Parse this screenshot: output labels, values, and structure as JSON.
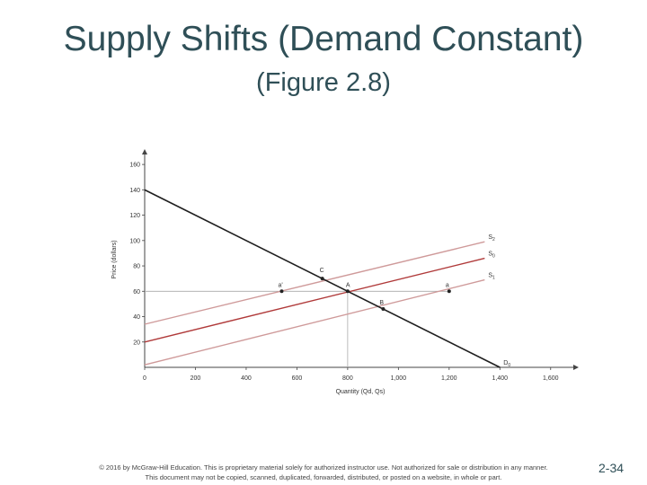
{
  "slide": {
    "title": "Supply Shifts (Demand Constant)",
    "subtitle": "(Figure 2.8)",
    "footer_line1": "© 2016 by McGraw-Hill Education. This is proprietary material solely for authorized instructor use. Not authorized for sale or distribution in any manner.",
    "footer_line2": "This document may not be copied, scanned, duplicated, forwarded, distributed, or posted on a website, in whole or part.",
    "page_number": "2-34"
  },
  "chart_data": {
    "type": "line",
    "xlabel": "Quantity (Qd, Qs)",
    "ylabel": "Price (dollars)",
    "xlim": [
      0,
      1700
    ],
    "ylim": [
      0,
      170
    ],
    "x_ticks": [
      0,
      200,
      400,
      600,
      800,
      1000,
      1200,
      1400,
      1600
    ],
    "x_tick_labels": [
      "0",
      "200",
      "400",
      "600",
      "800",
      "1,000",
      "1,200",
      "1,400",
      "1,600"
    ],
    "y_ticks": [
      20,
      40,
      60,
      80,
      100,
      120,
      140,
      160
    ],
    "grid": false,
    "colors": {
      "demand": "#1e1e1e",
      "s0": "#b03a3a",
      "shifted": "#cf9a9a",
      "guide": "#aaaaaa",
      "axis": "#444444"
    },
    "series": [
      {
        "name": "S2",
        "color": "#cf9a9a",
        "points": [
          [
            0,
            34
          ],
          [
            1340,
            99
          ]
        ]
      },
      {
        "name": "S0",
        "color": "#b03a3a",
        "points": [
          [
            0,
            20
          ],
          [
            1340,
            86
          ]
        ]
      },
      {
        "name": "S1",
        "color": "#cf9a9a",
        "points": [
          [
            0,
            2
          ],
          [
            1340,
            69
          ]
        ]
      },
      {
        "name": "D0",
        "color": "#1e1e1e",
        "points": [
          [
            0,
            140
          ],
          [
            1400,
            0
          ]
        ]
      }
    ],
    "points": [
      {
        "label": "A",
        "x": 800,
        "y": 60
      },
      {
        "label": "B",
        "x": 940,
        "y": 46
      },
      {
        "label": "C",
        "x": 700,
        "y": 70
      },
      {
        "label": "a'",
        "x": 540,
        "y": 60
      },
      {
        "label": "a",
        "x": 1200,
        "y": 60
      }
    ],
    "guides": [
      {
        "from": [
          0,
          60
        ],
        "to": [
          1200,
          60
        ]
      },
      {
        "from": [
          800,
          0
        ],
        "to": [
          800,
          60
        ]
      }
    ]
  }
}
